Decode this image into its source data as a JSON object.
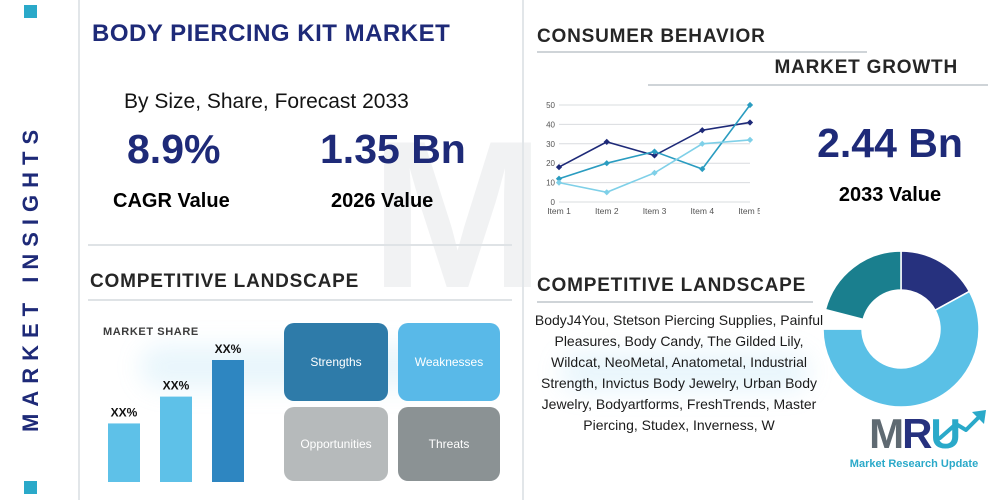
{
  "palette": {
    "navy": "#1e2a78",
    "teal": "#2aa9c9",
    "light_blue": "#59b9e8",
    "dark_blue": "#2e86c1",
    "gray": "#b6babb",
    "dark_gray": "#8b9294"
  },
  "sidebar": {
    "label": "MARKET INSIGHTS"
  },
  "header": {
    "title": "BODY PIERCING KIT MARKET",
    "subtitle": "By Size, Share, Forecast 2033"
  },
  "stats": {
    "cagr": {
      "value": "8.9%",
      "label": "CAGR Value"
    },
    "v2026": {
      "value": "1.35 Bn",
      "label": "2026 Value"
    },
    "v2033": {
      "value": "2.44 Bn",
      "label": "2033 Value"
    }
  },
  "sections": {
    "consumer_behavior": "CONSUMER BEHAVIOR",
    "market_growth": "MARKET GROWTH",
    "competitive_left": "COMPETITIVE LANDSCAPE",
    "competitive_right": "COMPETITIVE LANDSCAPE"
  },
  "swot": [
    {
      "label": "Strengths",
      "color": "#2e7ba9"
    },
    {
      "label": "Weaknesses",
      "color": "#59b9e8"
    },
    {
      "label": "Opportunities",
      "color": "#b6babb"
    },
    {
      "label": "Threats",
      "color": "#8b9294"
    }
  ],
  "companies": "BodyJ4You, Stetson Piercing Supplies, Painful Pleasures, Body Candy, The Gilded Lily, Wildcat, NeoMetal, Anatometal, Industrial Strength, Invictus Body Jewelry, Urban Body Jewelry, Bodyartforms, FreshTrends, Master Piercing, Studex, Inverness, W",
  "watermark": {
    "monogram": "M"
  },
  "logo": {
    "m": "M",
    "r": "R",
    "u": "U",
    "tagline": "Market Research Update"
  },
  "chart_data": [
    {
      "type": "line",
      "title": "Consumer behavior trend",
      "categories": [
        "Item 1",
        "Item 2",
        "Item 3",
        "Item 4",
        "Item 5"
      ],
      "series": [
        {
          "name": "series-navy",
          "color": "#1e2a78",
          "values": [
            18,
            31,
            24,
            37,
            41
          ]
        },
        {
          "name": "series-teal",
          "color": "#2a9cc0",
          "values": [
            12,
            20,
            26,
            17,
            50
          ]
        },
        {
          "name": "series-light-blue",
          "color": "#7fd0e8",
          "values": [
            10,
            5,
            15,
            30,
            32
          ]
        }
      ],
      "ylim": [
        0,
        50
      ],
      "yticks": [
        0,
        10,
        20,
        30,
        40,
        50
      ],
      "grid": true,
      "legend": "none"
    },
    {
      "type": "bar",
      "title": "MARKET SHARE",
      "categories": [
        "XX%",
        "XX%",
        "XX%"
      ],
      "values": [
        24,
        35,
        50
      ],
      "colors": [
        "#5ec1e8",
        "#5ec1e8",
        "#2e86c1"
      ],
      "ylim": [
        0,
        50
      ]
    },
    {
      "type": "pie",
      "donut": true,
      "labels": [
        "segment-navy",
        "segment-light-blue",
        "gap",
        "segment-teal"
      ],
      "values": [
        17,
        58,
        4,
        21
      ],
      "colors": [
        "#26317e",
        "#5ac0e6",
        "#ffffff",
        "#1a7f8e"
      ]
    }
  ]
}
